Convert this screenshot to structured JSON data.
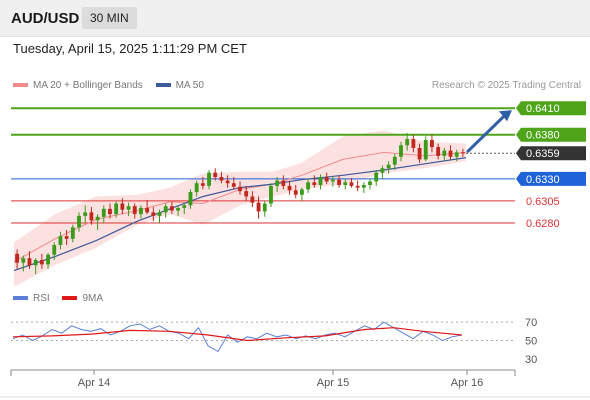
{
  "header": {
    "symbol": "AUD/USD",
    "timeframe": "30 MIN"
  },
  "datetime": "Tuesday, April 15, 2025 1:11:29 PM CET",
  "legend": {
    "main": [
      {
        "label": "MA 20 + Bollinger Bands",
        "color": "#f28a8a"
      },
      {
        "label": "MA 50",
        "color": "#3d5a99"
      }
    ],
    "rsi": [
      {
        "label": "RSI",
        "color": "#5b7fd6"
      },
      {
        "label": "9MA",
        "color": "#e01818"
      }
    ]
  },
  "credit": "Research © 2025 Trading Central",
  "levels": [
    {
      "value": 0.641,
      "label": "0.6410",
      "color": "#4ea51a",
      "kind": "resistance"
    },
    {
      "value": 0.638,
      "label": "0.6380",
      "color": "#4ea51a",
      "kind": "resistance"
    },
    {
      "value": 0.6359,
      "label": "0.6359",
      "color": "#333333",
      "kind": "current"
    },
    {
      "value": 0.633,
      "label": "0.6330",
      "color": "#1f63d8",
      "kind": "pivot"
    },
    {
      "value": 0.6305,
      "label": "0.6305",
      "color": "#dd3333",
      "kind": "support"
    },
    {
      "value": 0.628,
      "label": "0.6280",
      "color": "#dd3333",
      "kind": "support"
    }
  ],
  "rsi_levels": [
    "70",
    "50",
    "30"
  ],
  "xaxis": [
    "Apr 14",
    "Apr 15",
    "Apr 16"
  ],
  "chart_data": {
    "type": "candlestick",
    "colors": {
      "up": "#3a9a1a",
      "down": "#c0281e"
    },
    "ylim": [
      0.6204,
      0.6425
    ],
    "candles": [
      [
        0.6245,
        0.625,
        0.6228,
        0.6235
      ],
      [
        0.6235,
        0.6243,
        0.6225,
        0.624
      ],
      [
        0.624,
        0.6248,
        0.6228,
        0.6232
      ],
      [
        0.6232,
        0.624,
        0.6222,
        0.6238
      ],
      [
        0.6238,
        0.6245,
        0.6228,
        0.6233
      ],
      [
        0.6233,
        0.6246,
        0.6228,
        0.6244
      ],
      [
        0.6244,
        0.6258,
        0.6238,
        0.6255
      ],
      [
        0.6255,
        0.627,
        0.625,
        0.6265
      ],
      [
        0.6265,
        0.6272,
        0.6255,
        0.6262
      ],
      [
        0.6262,
        0.6278,
        0.6258,
        0.6275
      ],
      [
        0.6275,
        0.6292,
        0.627,
        0.6288
      ],
      [
        0.6288,
        0.63,
        0.628,
        0.6292
      ],
      [
        0.6292,
        0.6298,
        0.6278,
        0.6283
      ],
      [
        0.6283,
        0.629,
        0.6272,
        0.6287
      ],
      [
        0.6287,
        0.63,
        0.628,
        0.6296
      ],
      [
        0.6296,
        0.6302,
        0.6285,
        0.629
      ],
      [
        0.629,
        0.6305,
        0.6286,
        0.6302
      ],
      [
        0.6302,
        0.6308,
        0.629,
        0.6295
      ],
      [
        0.6295,
        0.6303,
        0.6288,
        0.6299
      ],
      [
        0.6299,
        0.6302,
        0.6285,
        0.629
      ],
      [
        0.629,
        0.63,
        0.6285,
        0.6297
      ],
      [
        0.6297,
        0.6306,
        0.629,
        0.6292
      ],
      [
        0.6292,
        0.6298,
        0.6282,
        0.6288
      ],
      [
        0.6288,
        0.6295,
        0.628,
        0.6292
      ],
      [
        0.6292,
        0.6302,
        0.6286,
        0.6299
      ],
      [
        0.6299,
        0.6304,
        0.629,
        0.6294
      ],
      [
        0.6294,
        0.63,
        0.6288,
        0.6297
      ],
      [
        0.6297,
        0.6303,
        0.629,
        0.63
      ],
      [
        0.63,
        0.6318,
        0.6296,
        0.6315
      ],
      [
        0.6315,
        0.6328,
        0.631,
        0.6325
      ],
      [
        0.6325,
        0.6332,
        0.6318,
        0.6322
      ],
      [
        0.6322,
        0.634,
        0.6318,
        0.6337
      ],
      [
        0.6337,
        0.6342,
        0.6328,
        0.6332
      ],
      [
        0.6332,
        0.6338,
        0.6325,
        0.6328
      ],
      [
        0.6328,
        0.6334,
        0.632,
        0.6325
      ],
      [
        0.6325,
        0.6332,
        0.6318,
        0.6321
      ],
      [
        0.6321,
        0.6327,
        0.6312,
        0.6316
      ],
      [
        0.6316,
        0.6322,
        0.6305,
        0.631
      ],
      [
        0.631,
        0.6316,
        0.6298,
        0.6303
      ],
      [
        0.6303,
        0.631,
        0.6285,
        0.6293
      ],
      [
        0.6293,
        0.6305,
        0.6287,
        0.6302
      ],
      [
        0.6302,
        0.6325,
        0.6298,
        0.6322
      ],
      [
        0.6322,
        0.6332,
        0.6315,
        0.6328
      ],
      [
        0.6328,
        0.6334,
        0.6318,
        0.6322
      ],
      [
        0.6322,
        0.6328,
        0.6312,
        0.6317
      ],
      [
        0.6317,
        0.6323,
        0.6308,
        0.6312
      ],
      [
        0.6312,
        0.632,
        0.6305,
        0.6318
      ],
      [
        0.6318,
        0.633,
        0.6314,
        0.6326
      ],
      [
        0.6326,
        0.6334,
        0.632,
        0.6323
      ],
      [
        0.6323,
        0.6335,
        0.6318,
        0.6332
      ],
      [
        0.6332,
        0.6337,
        0.6324,
        0.6327
      ],
      [
        0.6327,
        0.6333,
        0.6321,
        0.6329
      ],
      [
        0.6329,
        0.6334,
        0.632,
        0.6323
      ],
      [
        0.6323,
        0.633,
        0.6318,
        0.6326
      ],
      [
        0.6326,
        0.6331,
        0.632,
        0.6322
      ],
      [
        0.6322,
        0.6328,
        0.6316,
        0.632
      ],
      [
        0.632,
        0.6326,
        0.6314,
        0.6323
      ],
      [
        0.6323,
        0.633,
        0.6318,
        0.6327
      ],
      [
        0.6327,
        0.634,
        0.6322,
        0.6337
      ],
      [
        0.6337,
        0.6345,
        0.633,
        0.6342
      ],
      [
        0.6342,
        0.635,
        0.6336,
        0.6346
      ],
      [
        0.6346,
        0.6358,
        0.634,
        0.6355
      ],
      [
        0.6355,
        0.6372,
        0.635,
        0.6368
      ],
      [
        0.6368,
        0.6382,
        0.6362,
        0.6375
      ],
      [
        0.6375,
        0.638,
        0.636,
        0.6365
      ],
      [
        0.6365,
        0.637,
        0.6348,
        0.6352
      ],
      [
        0.6352,
        0.6378,
        0.635,
        0.6374
      ],
      [
        0.6374,
        0.638,
        0.636,
        0.6366
      ],
      [
        0.6366,
        0.637,
        0.6352,
        0.6356
      ],
      [
        0.6356,
        0.6365,
        0.635,
        0.6362
      ],
      [
        0.6362,
        0.6368,
        0.6352,
        0.6355
      ],
      [
        0.6355,
        0.6363,
        0.635,
        0.636
      ],
      [
        0.636,
        0.6364,
        0.6355,
        0.6359
      ]
    ],
    "ma50": [
      [
        0,
        0.6226
      ],
      [
        10,
        0.6242
      ],
      [
        20,
        0.626
      ],
      [
        30,
        0.6282
      ],
      [
        38,
        0.6296
      ],
      [
        46,
        0.631
      ],
      [
        55,
        0.632
      ],
      [
        63,
        0.6324
      ],
      [
        70,
        0.6329
      ],
      [
        80,
        0.6334
      ],
      [
        90,
        0.634
      ],
      [
        100,
        0.6347
      ],
      [
        110,
        0.6354
      ]
    ],
    "ma20": [
      [
        0,
        0.6236
      ],
      [
        10,
        0.6262
      ],
      [
        20,
        0.6284
      ],
      [
        30,
        0.6294
      ],
      [
        38,
        0.6304
      ],
      [
        46,
        0.6302
      ],
      [
        55,
        0.6318
      ],
      [
        63,
        0.6324
      ],
      [
        70,
        0.6334
      ],
      [
        80,
        0.6352
      ],
      [
        90,
        0.636
      ],
      [
        100,
        0.6356
      ],
      [
        110,
        0.636
      ]
    ],
    "bb_upper": [
      [
        0,
        0.6258
      ],
      [
        10,
        0.629
      ],
      [
        20,
        0.631
      ],
      [
        30,
        0.6312
      ],
      [
        38,
        0.632
      ],
      [
        46,
        0.6336
      ],
      [
        55,
        0.6338
      ],
      [
        63,
        0.6338
      ],
      [
        70,
        0.6348
      ],
      [
        80,
        0.6378
      ],
      [
        90,
        0.6385
      ],
      [
        100,
        0.6372
      ],
      [
        110,
        0.637
      ]
    ],
    "bb_lower": [
      [
        0,
        0.6208
      ],
      [
        10,
        0.6232
      ],
      [
        20,
        0.6252
      ],
      [
        30,
        0.6278
      ],
      [
        38,
        0.629
      ],
      [
        46,
        0.6278
      ],
      [
        55,
        0.63
      ],
      [
        63,
        0.631
      ],
      [
        70,
        0.6318
      ],
      [
        80,
        0.6324
      ],
      [
        90,
        0.6336
      ],
      [
        100,
        0.6342
      ],
      [
        110,
        0.635
      ]
    ],
    "rsi": [
      [
        0,
        52
      ],
      [
        5,
        56
      ],
      [
        10,
        50
      ],
      [
        15,
        55
      ],
      [
        20,
        62
      ],
      [
        25,
        58
      ],
      [
        30,
        66
      ],
      [
        35,
        62
      ],
      [
        40,
        60
      ],
      [
        45,
        63
      ],
      [
        50,
        56
      ],
      [
        55,
        60
      ],
      [
        60,
        66
      ],
      [
        65,
        68
      ],
      [
        70,
        62
      ],
      [
        75,
        66
      ],
      [
        80,
        60
      ],
      [
        85,
        58
      ],
      [
        90,
        52
      ],
      [
        95,
        64
      ],
      [
        100,
        44
      ],
      [
        105,
        38
      ],
      [
        110,
        56
      ],
      [
        115,
        48
      ],
      [
        120,
        54
      ],
      [
        125,
        52
      ],
      [
        130,
        58
      ],
      [
        135,
        54
      ],
      [
        140,
        56
      ],
      [
        145,
        52
      ],
      [
        150,
        55
      ],
      [
        155,
        52
      ],
      [
        160,
        56
      ],
      [
        165,
        58
      ],
      [
        170,
        54
      ],
      [
        175,
        60
      ],
      [
        180,
        66
      ],
      [
        185,
        62
      ],
      [
        190,
        70
      ],
      [
        195,
        64
      ],
      [
        200,
        58
      ],
      [
        205,
        52
      ],
      [
        210,
        60
      ],
      [
        215,
        56
      ],
      [
        220,
        50
      ],
      [
        225,
        54
      ],
      [
        230,
        56
      ]
    ],
    "rsi_ma": [
      [
        0,
        54
      ],
      [
        20,
        55
      ],
      [
        40,
        57
      ],
      [
        60,
        61
      ],
      [
        80,
        60
      ],
      [
        100,
        56
      ],
      [
        120,
        50
      ],
      [
        140,
        53
      ],
      [
        160,
        55
      ],
      [
        180,
        62
      ],
      [
        195,
        64
      ],
      [
        210,
        60
      ],
      [
        230,
        56
      ]
    ],
    "rsi_ylim": [
      20,
      80
    ]
  }
}
